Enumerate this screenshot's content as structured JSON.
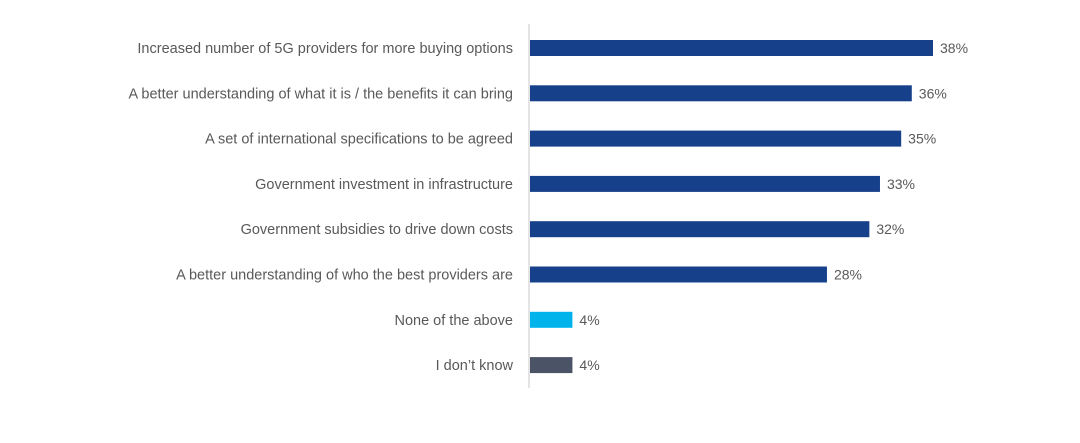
{
  "chart_data": {
    "type": "bar",
    "orientation": "horizontal",
    "categories": [
      "Increased number of 5G providers for more buying options",
      "A better understanding of what it is / the benefits it can bring",
      "A set of international specifications to be agreed",
      "Government investment in infrastructure",
      "Government subsidies to drive down costs",
      "A better understanding of who the best providers are",
      "None of the above",
      "I don’t know"
    ],
    "values": [
      38,
      36,
      35,
      33,
      32,
      28,
      4,
      4
    ],
    "value_labels": [
      "38%",
      "36%",
      "35%",
      "33%",
      "32%",
      "28%",
      "4%",
      "4%"
    ],
    "bar_colors": [
      "#17408b",
      "#17408b",
      "#17408b",
      "#17408b",
      "#17408b",
      "#17408b",
      "#00b4eb",
      "#4a5466"
    ],
    "xlim": [
      0,
      38
    ],
    "grid": false,
    "legend": "none"
  },
  "colors": {
    "label_text": "#595959",
    "axis_line": "#c8c8c8"
  }
}
